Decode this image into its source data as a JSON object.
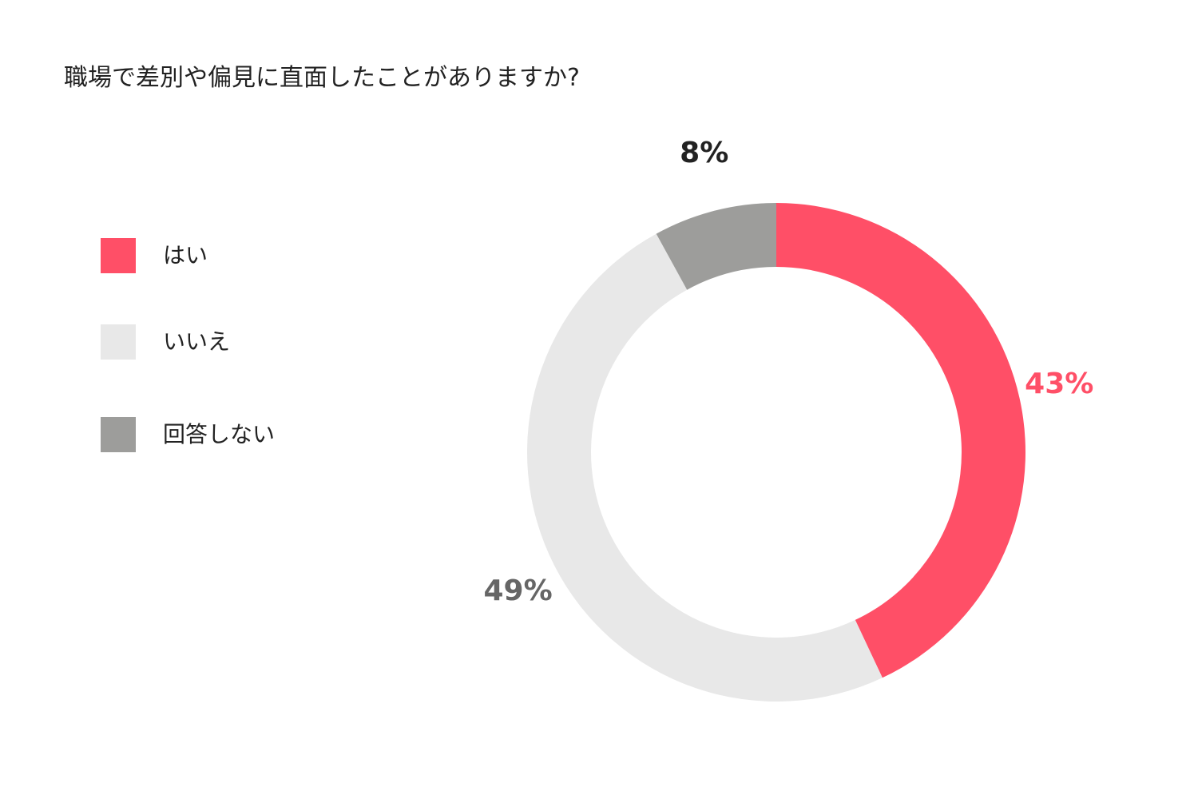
{
  "chart_data": {
    "type": "pie",
    "title": "職場で差別や偏見に直面したことがありますか?",
    "categories": [
      "はい",
      "いいえ",
      "回答しない"
    ],
    "values": [
      43,
      49,
      8
    ],
    "value_labels": [
      "43%",
      "49%",
      "8%"
    ],
    "colors": [
      "#ff4f67",
      "#e8e8e8",
      "#9d9d9b"
    ],
    "label_colors": [
      "#ff4f67",
      "#666666",
      "#222222"
    ],
    "donut": true,
    "legend_position": "left"
  }
}
